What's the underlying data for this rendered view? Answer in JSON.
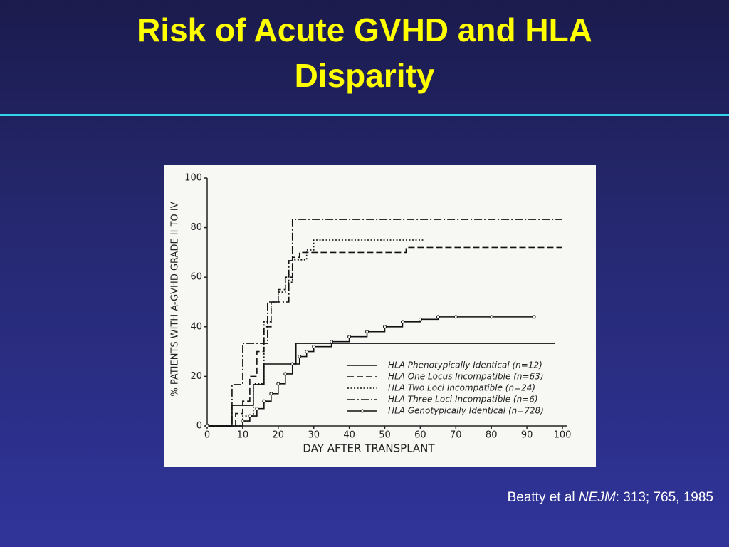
{
  "slide": {
    "title": "Risk of Acute GVHD and HLA Disparity",
    "citation": {
      "author": "Beatty et al",
      "journal": "NEJM",
      "reference": ": 313; 765, 1985"
    }
  },
  "chart_data": {
    "type": "line",
    "step": true,
    "xlabel": "DAY AFTER TRANSPLANT",
    "ylabel": "% PATIENTS WITH A-GVHD GRADE II TO IV",
    "xlim": [
      0,
      100
    ],
    "xticks": [
      0,
      10,
      20,
      30,
      40,
      50,
      60,
      70,
      80,
      90,
      100
    ],
    "ylim": [
      0,
      100
    ],
    "yticks": [
      0,
      20,
      40,
      60,
      80,
      100
    ],
    "series": [
      {
        "name": "HLA Phenotypically Identical (n=12)",
        "color": "#111111",
        "dash": "solid",
        "markers": false,
        "x": [
          0,
          7,
          13,
          16,
          25,
          98
        ],
        "values": [
          0,
          8.3,
          16.7,
          25,
          33.3,
          33.3
        ]
      },
      {
        "name": "HLA One Locus Incompatible (n=63)",
        "color": "#111111",
        "dash": "dashed",
        "markers": false,
        "x": [
          0,
          8,
          10,
          12,
          14,
          16,
          18,
          20,
          22,
          24,
          26,
          56,
          100
        ],
        "values": [
          0,
          5,
          10,
          20,
          30,
          40,
          50,
          55,
          60,
          68,
          70,
          72,
          72
        ]
      },
      {
        "name": "HLA Two Loci Incompatible (n=24)",
        "color": "#111111",
        "dash": "dotted",
        "markers": false,
        "x": [
          0,
          10,
          13,
          16,
          18,
          20,
          22,
          24,
          28,
          30,
          61
        ],
        "values": [
          0,
          4,
          17,
          42,
          50,
          54,
          58,
          67,
          71,
          75,
          75
        ]
      },
      {
        "name": "HLA Three Loci Incompatible (n=6)",
        "color": "#111111",
        "dash": "dashdot",
        "markers": false,
        "x": [
          0,
          7,
          10,
          17,
          23,
          24,
          100
        ],
        "values": [
          0,
          16.7,
          33.3,
          50,
          66.7,
          83.3,
          83.3
        ]
      },
      {
        "name": "HLA Genotypically Identical (n=728)",
        "color": "#111111",
        "dash": "solid",
        "markers": true,
        "x": [
          0,
          10,
          12,
          14,
          16,
          18,
          20,
          22,
          24,
          26,
          28,
          30,
          35,
          40,
          45,
          50,
          55,
          60,
          65,
          70,
          80,
          92
        ],
        "values": [
          0,
          2,
          4,
          7,
          10,
          13,
          17,
          21,
          25,
          28,
          30,
          32,
          34,
          36,
          38,
          40,
          42,
          43,
          44,
          44,
          44,
          44
        ]
      }
    ]
  }
}
